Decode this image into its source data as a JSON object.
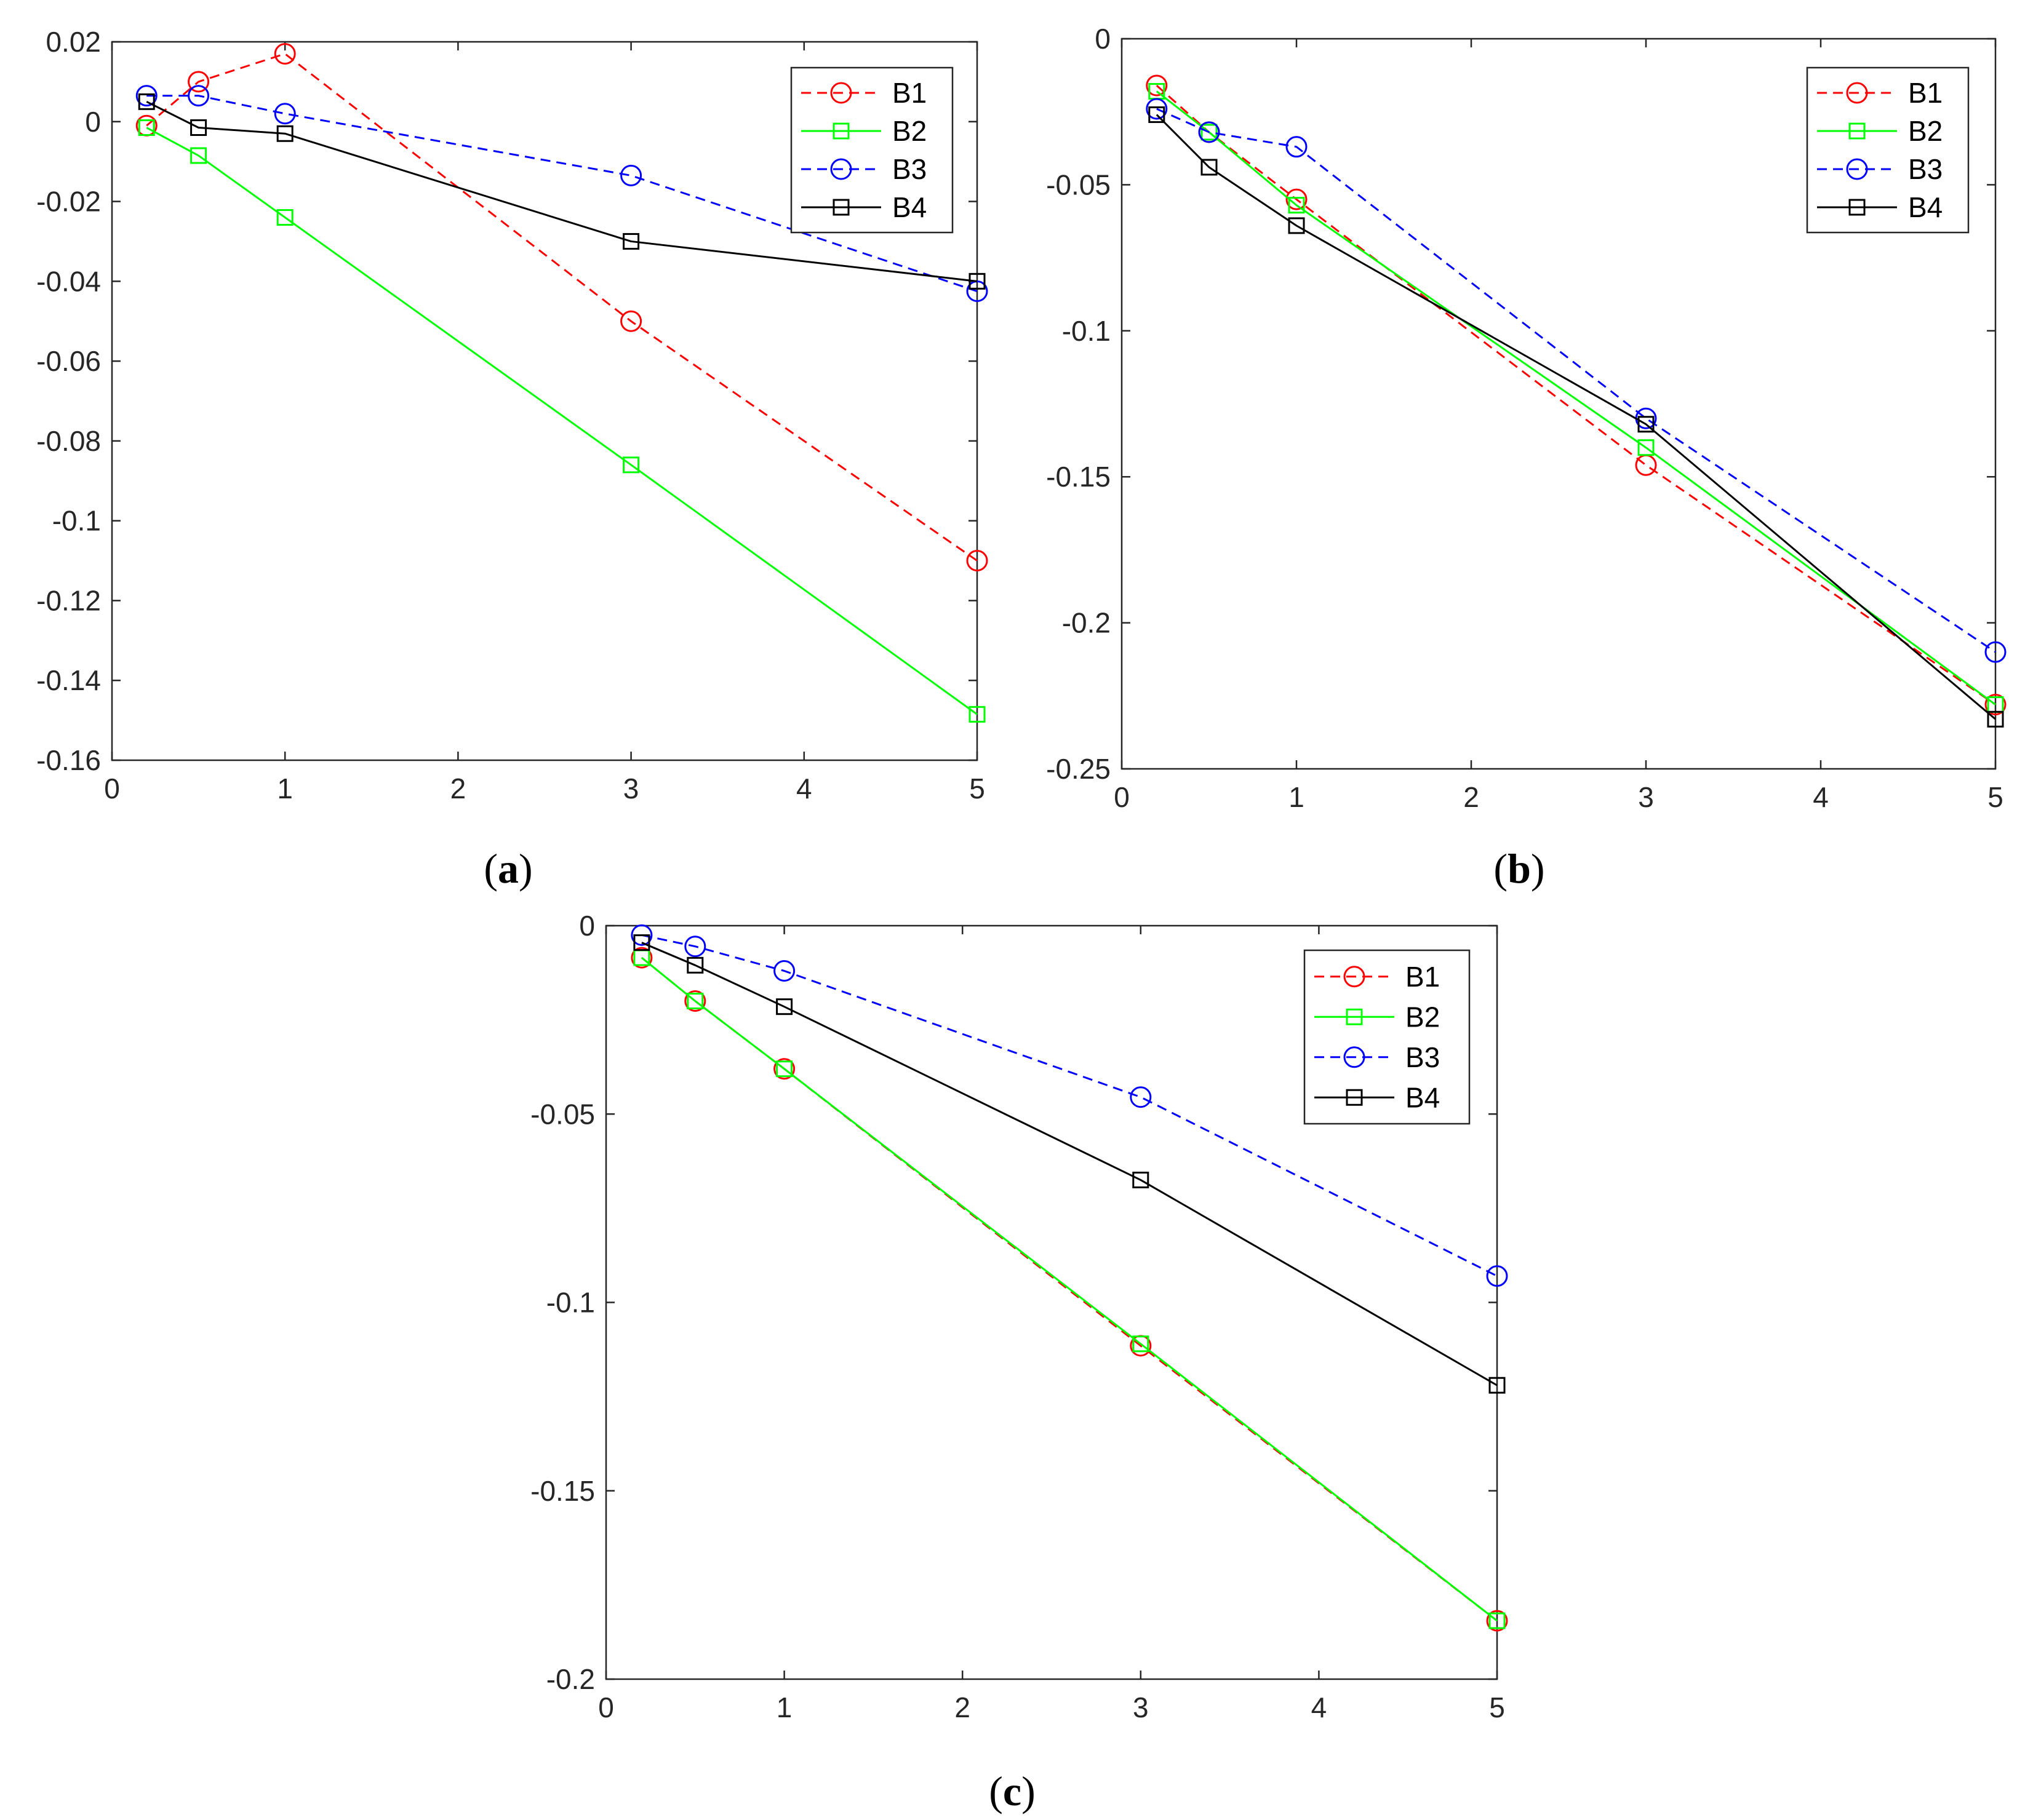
{
  "chart_data": [
    {
      "type": "line",
      "panel_label": {
        "open": "(",
        "letter": "a",
        "close": ")"
      },
      "title": "",
      "xlabel": "",
      "ylabel": "",
      "xlim": [
        0,
        5
      ],
      "ylim": [
        -0.16,
        0.02
      ],
      "xticks": [
        0,
        1,
        2,
        3,
        4,
        5
      ],
      "xtick_labels": [
        "0",
        "1",
        "2",
        "3",
        "4",
        "5"
      ],
      "yticks": [
        0.02,
        0,
        -0.02,
        -0.04,
        -0.06,
        -0.08,
        -0.1,
        -0.12,
        -0.14,
        -0.16
      ],
      "ytick_labels": [
        "0.02",
        "0",
        "-0.02",
        "-0.04",
        "-0.06",
        "-0.08",
        "-0.1",
        "-0.12",
        "-0.14",
        "-0.16"
      ],
      "grid": false,
      "legend_position": "top-right",
      "series": [
        {
          "name": "B1",
          "color": "#ff0000",
          "dash": "dashed",
          "marker": "circle",
          "x": [
            0.2,
            0.5,
            1,
            3,
            5
          ],
          "values": [
            -0.001,
            0.01,
            0.017,
            -0.05,
            -0.11
          ]
        },
        {
          "name": "B2",
          "color": "#00ff00",
          "dash": "solid",
          "marker": "square",
          "x": [
            0.2,
            0.5,
            1,
            3,
            5
          ],
          "values": [
            -0.0015,
            -0.0085,
            -0.024,
            -0.086,
            -0.1485
          ]
        },
        {
          "name": "B3",
          "color": "#0000ff",
          "dash": "dashed",
          "marker": "circle",
          "x": [
            0.2,
            0.5,
            1,
            3,
            5
          ],
          "values": [
            0.0065,
            0.0065,
            0.002,
            -0.0135,
            -0.0425
          ]
        },
        {
          "name": "B4",
          "color": "#000000",
          "dash": "solid",
          "marker": "square",
          "x": [
            0.2,
            0.5,
            1,
            3,
            5
          ],
          "values": [
            0.005,
            -0.0015,
            -0.003,
            -0.03,
            -0.04
          ]
        }
      ]
    },
    {
      "type": "line",
      "panel_label": {
        "open": "(",
        "letter": "b",
        "close": ")"
      },
      "title": "",
      "xlabel": "",
      "ylabel": "",
      "xlim": [
        0,
        5
      ],
      "ylim": [
        -0.25,
        0
      ],
      "xticks": [
        0,
        1,
        2,
        3,
        4,
        5
      ],
      "xtick_labels": [
        "0",
        "1",
        "2",
        "3",
        "4",
        "5"
      ],
      "yticks": [
        0,
        -0.05,
        -0.1,
        -0.15,
        -0.2,
        -0.25
      ],
      "ytick_labels": [
        "0",
        "-0.05",
        "-0.1",
        "-0.15",
        "-0.2",
        "-0.25"
      ],
      "grid": false,
      "legend_position": "top-right",
      "series": [
        {
          "name": "B1",
          "color": "#ff0000",
          "dash": "dashed",
          "marker": "circle",
          "x": [
            0.2,
            0.5,
            1,
            3,
            5
          ],
          "values": [
            -0.016,
            -0.032,
            -0.055,
            -0.146,
            -0.228
          ]
        },
        {
          "name": "B2",
          "color": "#00ff00",
          "dash": "solid",
          "marker": "square",
          "x": [
            0.2,
            0.5,
            1,
            3,
            5
          ],
          "values": [
            -0.018,
            -0.032,
            -0.057,
            -0.14,
            -0.228
          ]
        },
        {
          "name": "B3",
          "color": "#0000ff",
          "dash": "dashed",
          "marker": "circle",
          "x": [
            0.2,
            0.5,
            1,
            3,
            5
          ],
          "values": [
            -0.024,
            -0.032,
            -0.037,
            -0.13,
            -0.21
          ]
        },
        {
          "name": "B4",
          "color": "#000000",
          "dash": "solid",
          "marker": "square",
          "x": [
            0.2,
            0.5,
            1,
            3,
            5
          ],
          "values": [
            -0.026,
            -0.044,
            -0.064,
            -0.132,
            -0.233
          ]
        }
      ]
    },
    {
      "type": "line",
      "panel_label": {
        "open": "(",
        "letter": "c",
        "close": ")"
      },
      "title": "",
      "xlabel": "",
      "ylabel": "",
      "xlim": [
        0,
        5
      ],
      "ylim": [
        -0.2,
        0
      ],
      "xticks": [
        0,
        1,
        2,
        3,
        4,
        5
      ],
      "xtick_labels": [
        "0",
        "1",
        "2",
        "3",
        "4",
        "5"
      ],
      "yticks": [
        0,
        -0.05,
        -0.1,
        -0.15,
        -0.2
      ],
      "ytick_labels": [
        "0",
        "-0.05",
        "-0.1",
        "-0.15",
        "-0.2"
      ],
      "grid": false,
      "legend_position": "top-right",
      "series": [
        {
          "name": "B1",
          "color": "#ff0000",
          "dash": "dashed",
          "marker": "circle",
          "x": [
            0.2,
            0.5,
            1,
            3,
            5
          ],
          "values": [
            -0.0085,
            -0.02,
            -0.038,
            -0.1115,
            -0.1845
          ]
        },
        {
          "name": "B2",
          "color": "#00ff00",
          "dash": "solid",
          "marker": "square",
          "x": [
            0.2,
            0.5,
            1,
            3,
            5
          ],
          "values": [
            -0.0085,
            -0.02,
            -0.038,
            -0.111,
            -0.1845
          ]
        },
        {
          "name": "B3",
          "color": "#0000ff",
          "dash": "dashed",
          "marker": "circle",
          "x": [
            0.2,
            0.5,
            1,
            3,
            5
          ],
          "values": [
            -0.0025,
            -0.0055,
            -0.012,
            -0.0455,
            -0.093
          ]
        },
        {
          "name": "B4",
          "color": "#000000",
          "dash": "solid",
          "marker": "square",
          "x": [
            0.2,
            0.5,
            1,
            3,
            5
          ],
          "values": [
            -0.0045,
            -0.0105,
            -0.0215,
            -0.0675,
            -0.122
          ]
        }
      ]
    }
  ]
}
